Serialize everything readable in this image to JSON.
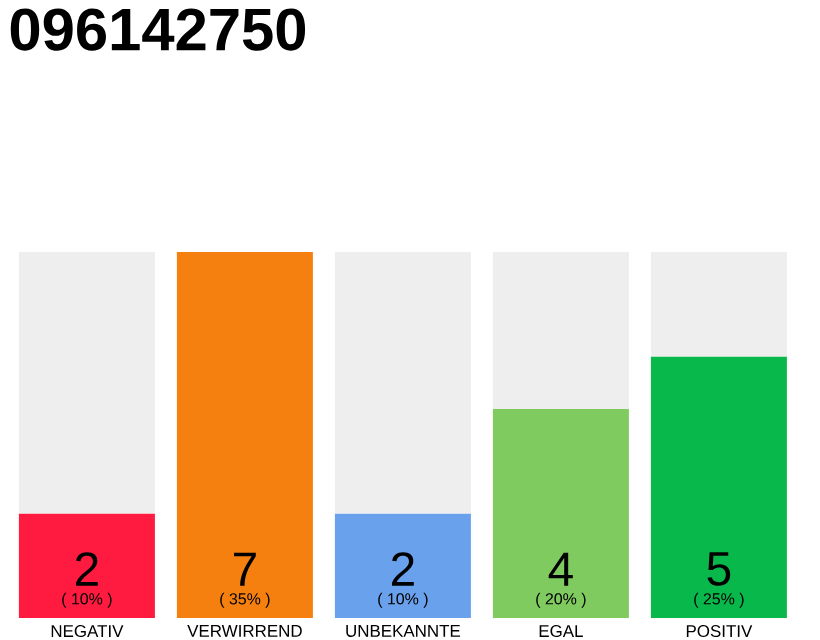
{
  "chart_data": {
    "type": "bar",
    "title": "096142750",
    "categories": [
      "NEGATIV",
      "VERWIRREND",
      "UNBEKANNTE",
      "EGAL",
      "POSITIV"
    ],
    "stacked": true,
    "series": [
      {
        "colors": [
          "#ff1a40",
          "#f5800f",
          "#6aa1ec",
          "#7fcb5f",
          "#09b84a"
        ],
        "values": [
          2,
          7,
          2,
          4,
          5
        ],
        "value_labels": [
          "2",
          "7",
          "2",
          "4",
          "5"
        ]
      },
      {
        "color": "#eeeeee",
        "values": [
          5,
          0,
          5,
          3,
          2
        ]
      }
    ],
    "annotations": [
      "( 10% )",
      "( 35% )",
      "( 10% )",
      "( 20% )",
      "( 25% )"
    ]
  }
}
